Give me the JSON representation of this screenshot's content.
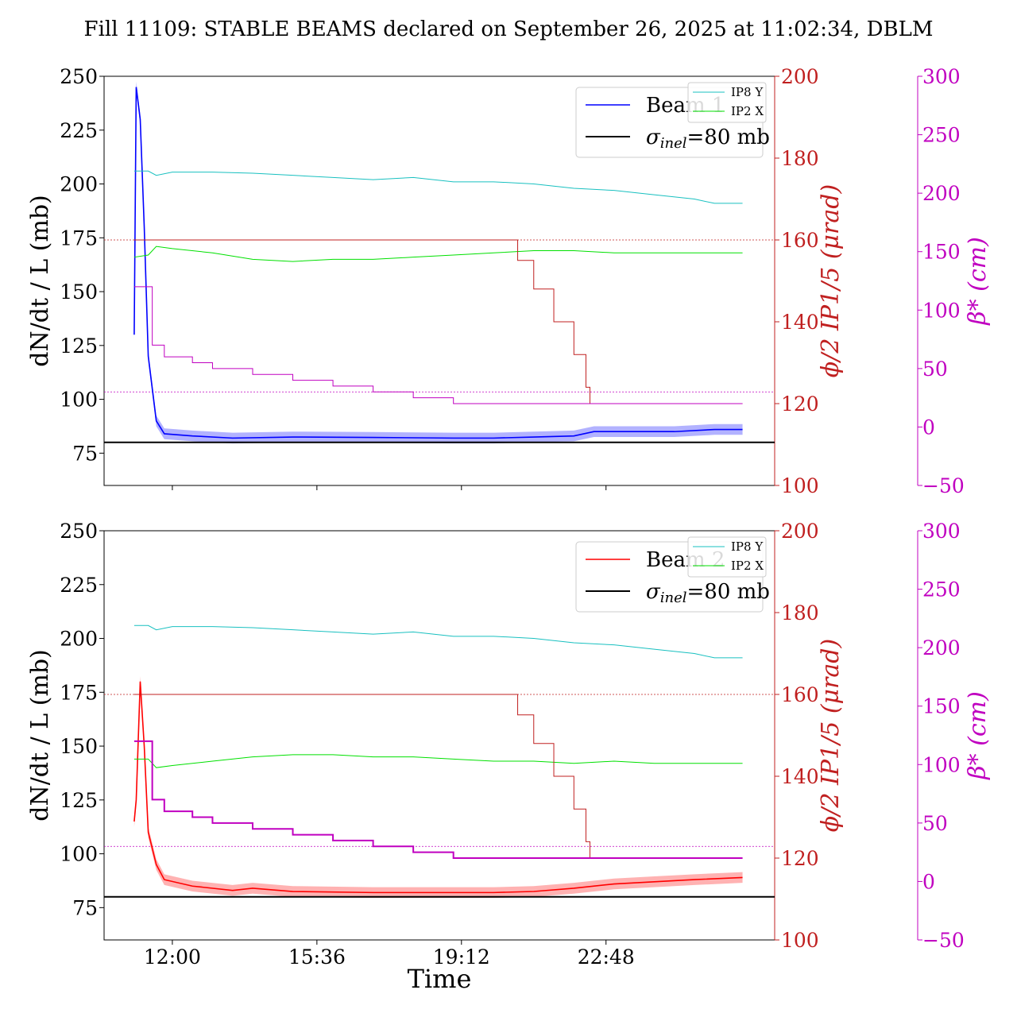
{
  "title": "Fill 11109: STABLE BEAMS declared on September 26, 2025 at 11:02:34, DBLM",
  "xlabel": "Time",
  "x_ticks": [
    "12:00",
    "15:36",
    "19:12",
    "22:48"
  ],
  "y_left_ticks": [
    "75",
    "100",
    "125",
    "150",
    "175",
    "200",
    "225",
    "250"
  ],
  "y_mid_ticks": [
    "100",
    "120",
    "140",
    "160",
    "180",
    "200"
  ],
  "y_right_ticks": [
    "−50",
    "0",
    "50",
    "100",
    "150",
    "200",
    "250",
    "300"
  ],
  "colors": {
    "beam1": "#0000ff",
    "beam2": "#ff0000",
    "ref": "#000000",
    "ip8": "#19c0c0",
    "ip2": "#00e000",
    "crossing": "#c02020",
    "beta": "#c000c0"
  },
  "chart_data": [
    {
      "type": "line",
      "xlabel_x": "Time",
      "ylabel_left": "dN/dt / L (mb)",
      "ylabel_mid": "ϕ/2 IP1/5 (μrad)",
      "ylabel_right": "β* (cm)",
      "ylim_left": [
        60,
        250
      ],
      "ylim_mid": [
        100,
        200
      ],
      "ylim_right": [
        -50,
        300
      ],
      "x_time_labels": [
        "12:00",
        "15:36",
        "19:12",
        "22:48"
      ],
      "legend_main": [
        "Beam 1",
        "σinel=80 mb"
      ],
      "legend_small": [
        "IP8 Y",
        "IP2 X"
      ],
      "legend_beam_label": "Beam 1",
      "legend_ref_label": "=80 mb",
      "legend_small_ip8": "IP8 Y",
      "legend_small_ip2": "IP2 X",
      "sigma_inel_mb": 80,
      "series": [
        {
          "name": "Beam 1",
          "axis": "left",
          "x_hours": [
            11.05,
            11.1,
            11.2,
            11.3,
            11.4,
            11.6,
            11.8,
            12.5,
            13.5,
            15,
            17,
            19,
            20,
            21,
            22,
            22.5,
            23.5,
            24.5,
            25.5,
            26.2
          ],
          "values": [
            130,
            245,
            230,
            180,
            120,
            90,
            84,
            83,
            82,
            82.5,
            82.3,
            82,
            82,
            82.5,
            83,
            85,
            85,
            85,
            86,
            86
          ]
        },
        {
          "name": "IP8 Y",
          "axis": "left",
          "x_hours": [
            11.05,
            11.4,
            11.6,
            12,
            13,
            14,
            15,
            16,
            17,
            18,
            19,
            20,
            21,
            22,
            23,
            24,
            25,
            25.5,
            26.2
          ],
          "values": [
            206,
            206,
            204,
            205.5,
            205.5,
            205,
            204,
            203,
            202,
            203,
            201,
            201,
            200,
            198,
            197,
            195,
            193,
            191,
            191
          ]
        },
        {
          "name": "IP2 X",
          "axis": "left",
          "x_hours": [
            11.05,
            11.4,
            11.6,
            12,
            13,
            14,
            15,
            16,
            17,
            18,
            19,
            20,
            21,
            22,
            23,
            24,
            25,
            26.2
          ],
          "values": [
            166,
            167,
            171,
            170,
            168,
            165,
            164,
            165,
            165,
            166,
            167,
            168,
            169,
            169,
            168,
            168,
            168,
            168
          ]
        },
        {
          "name": "Crossing angle IP1/5",
          "axis": "mid",
          "x_hours": [
            11.05,
            11.5,
            20.3,
            20.6,
            21.0,
            21.5,
            22.0,
            22.3,
            22.4,
            26.2
          ],
          "values": [
            160,
            160,
            160,
            155,
            148,
            140,
            132,
            124,
            120,
            120
          ]
        },
        {
          "name": "beta* IP1/5",
          "axis": "right",
          "x_hours": [
            11.05,
            11.4,
            11.5,
            11.8,
            12.5,
            13,
            14,
            15,
            16,
            17,
            18,
            19,
            26.2
          ],
          "values": [
            120,
            120,
            70,
            60,
            55,
            50,
            45,
            40,
            35,
            30,
            25,
            20,
            20
          ]
        }
      ],
      "reference_lines": {
        "left_mb": 80,
        "mid_urad": 160,
        "right_cm": 30
      }
    },
    {
      "type": "line",
      "xlabel_x": "Time",
      "ylabel_left": "dN/dt / L (mb)",
      "ylabel_mid": "ϕ/2 IP1/5 (μrad)",
      "ylabel_right": "β* (cm)",
      "ylim_left": [
        60,
        250
      ],
      "ylim_mid": [
        100,
        200
      ],
      "ylim_right": [
        -50,
        300
      ],
      "x_time_labels": [
        "12:00",
        "15:36",
        "19:12",
        "22:48"
      ],
      "legend_main": [
        "Beam 2",
        "σinel=80 mb"
      ],
      "legend_small": [
        "IP8 Y",
        "IP2 X"
      ],
      "legend_beam_label": "Beam 2",
      "legend_ref_label": "=80 mb",
      "legend_small_ip8": "IP8 Y",
      "legend_small_ip2": "IP2 X",
      "sigma_inel_mb": 80,
      "series": [
        {
          "name": "Beam 2",
          "axis": "left",
          "x_hours": [
            11.05,
            11.1,
            11.2,
            11.3,
            11.4,
            11.6,
            11.8,
            12.5,
            13.5,
            14,
            15,
            17,
            19,
            20,
            21,
            22,
            23,
            24,
            25,
            26.2
          ],
          "values": [
            115,
            125,
            180,
            150,
            110,
            95,
            88,
            85,
            83,
            84,
            82.5,
            82,
            82,
            82,
            82.5,
            84,
            86,
            87,
            88,
            89
          ]
        },
        {
          "name": "IP8 Y",
          "axis": "left",
          "x_hours": [
            11.05,
            11.4,
            11.6,
            12,
            13,
            14,
            15,
            16,
            17,
            18,
            19,
            20,
            21,
            22,
            23,
            24,
            25,
            25.5,
            26.2
          ],
          "values": [
            206,
            206,
            204,
            205.5,
            205.5,
            205,
            204,
            203,
            202,
            203,
            201,
            201,
            200,
            198,
            197,
            195,
            193,
            191,
            191
          ]
        },
        {
          "name": "IP2 X",
          "axis": "left",
          "x_hours": [
            11.05,
            11.4,
            11.6,
            12,
            13,
            14,
            15,
            16,
            17,
            18,
            19,
            20,
            21,
            22,
            23,
            24,
            25,
            26.2
          ],
          "values": [
            144,
            144,
            140,
            141,
            143,
            145,
            146,
            146,
            145,
            145,
            144,
            143,
            143,
            142,
            143,
            142,
            142,
            142
          ]
        },
        {
          "name": "Crossing angle IP1/5",
          "axis": "mid",
          "x_hours": [
            11.05,
            11.5,
            20.3,
            20.6,
            21.0,
            21.5,
            22.0,
            22.3,
            22.4,
            26.2
          ],
          "values": [
            160,
            160,
            160,
            155,
            148,
            140,
            132,
            124,
            120,
            120
          ]
        },
        {
          "name": "beta* IP1/5",
          "axis": "right",
          "x_hours": [
            11.05,
            11.4,
            11.5,
            11.8,
            12.5,
            13,
            14,
            15,
            16,
            17,
            18,
            19,
            26.2
          ],
          "values": [
            120,
            120,
            70,
            60,
            55,
            50,
            45,
            40,
            35,
            30,
            25,
            20,
            20
          ]
        }
      ],
      "reference_lines": {
        "left_mb": 80,
        "mid_urad": 160,
        "right_cm": 30
      }
    }
  ]
}
